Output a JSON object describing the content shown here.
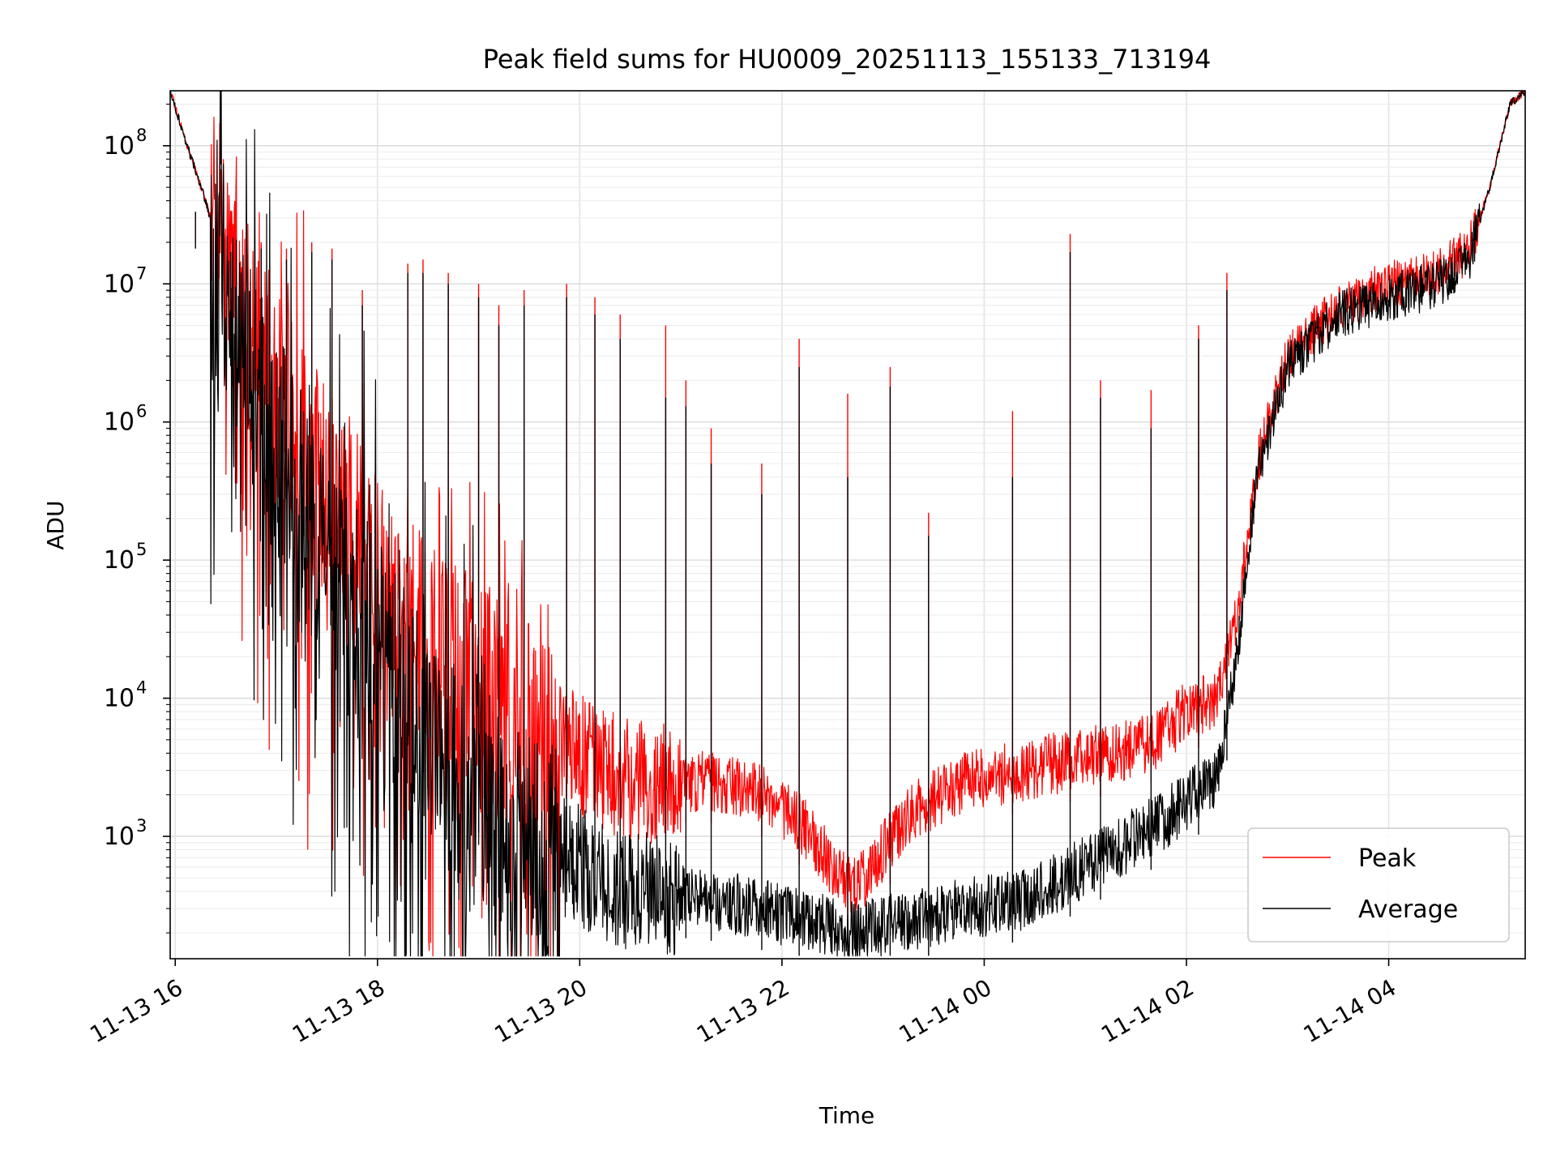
{
  "chart_data": {
    "type": "line",
    "title": "Peak field sums for HU0009_20251113_155133_713194",
    "xlabel": "Time",
    "ylabel": "ADU",
    "yscale": "log",
    "ylim": [
      130,
      250000000
    ],
    "xlim_hours": [
      15.95,
      29.35
    ],
    "grid": true,
    "legend_position": "lower-right",
    "x_ticks": [
      {
        "label": "11-13 16",
        "hour": 16
      },
      {
        "label": "11-13 18",
        "hour": 18
      },
      {
        "label": "11-13 20",
        "hour": 20
      },
      {
        "label": "11-13 22",
        "hour": 22
      },
      {
        "label": "11-14 00",
        "hour": 24
      },
      {
        "label": "11-14 02",
        "hour": 26
      },
      {
        "label": "11-14 04",
        "hour": 28
      }
    ],
    "y_ticks": [
      {
        "base": "10",
        "exp": "3",
        "value": 1000
      },
      {
        "base": "10",
        "exp": "4",
        "value": 10000
      },
      {
        "base": "10",
        "exp": "5",
        "value": 100000
      },
      {
        "base": "10",
        "exp": "6",
        "value": 1000000
      },
      {
        "base": "10",
        "exp": "7",
        "value": 10000000
      },
      {
        "base": "10",
        "exp": "8",
        "value": 100000000
      }
    ],
    "series": [
      {
        "name": "Peak",
        "color": "#ff0000",
        "envelope_hours": [
          15.95,
          16.1,
          16.3,
          16.5,
          16.8,
          17.5,
          18.5,
          19.5,
          20.5,
          21.3,
          21.8,
          22.2,
          22.7,
          23.3,
          23.8,
          24.4,
          24.8,
          25.3,
          25.7,
          26.0,
          26.3,
          26.5,
          26.7,
          27.0,
          27.5,
          28.0,
          28.5,
          28.8,
          29.0,
          29.2,
          29.35
        ],
        "envelope_values": [
          250000000,
          110000000,
          40000000,
          12000000,
          3000000,
          300000,
          25000,
          6000,
          2500,
          2500,
          2000,
          1200,
          400,
          1500,
          2500,
          3000,
          3500,
          4000,
          5000,
          8000,
          10000,
          40000,
          500000,
          3000000,
          7000000,
          10000000,
          12000000,
          18000000,
          50000000,
          200000000,
          250000000
        ],
        "spikes": [
          {
            "hour": 16.2,
            "value": 20000000
          },
          {
            "hour": 16.55,
            "value": 20000000
          },
          {
            "hour": 16.85,
            "value": 20000000
          },
          {
            "hour": 17.1,
            "value": 18000000
          },
          {
            "hour": 17.35,
            "value": 20000000
          },
          {
            "hour": 17.55,
            "value": 18000000
          },
          {
            "hour": 17.85,
            "value": 9000000
          },
          {
            "hour": 18.3,
            "value": 14000000
          },
          {
            "hour": 18.45,
            "value": 15000000
          },
          {
            "hour": 18.7,
            "value": 12000000
          },
          {
            "hour": 19.0,
            "value": 10000000
          },
          {
            "hour": 19.2,
            "value": 7000000
          },
          {
            "hour": 19.45,
            "value": 9000000
          },
          {
            "hour": 19.87,
            "value": 10000000
          },
          {
            "hour": 20.15,
            "value": 8000000
          },
          {
            "hour": 20.4,
            "value": 6000000
          },
          {
            "hour": 20.85,
            "value": 5000000
          },
          {
            "hour": 21.05,
            "value": 2000000
          },
          {
            "hour": 21.3,
            "value": 900000
          },
          {
            "hour": 21.8,
            "value": 500000
          },
          {
            "hour": 22.17,
            "value": 4000000
          },
          {
            "hour": 22.65,
            "value": 1600000
          },
          {
            "hour": 23.07,
            "value": 2500000
          },
          {
            "hour": 23.45,
            "value": 220000
          },
          {
            "hour": 24.28,
            "value": 1200000
          },
          {
            "hour": 24.85,
            "value": 23000000
          },
          {
            "hour": 25.15,
            "value": 2000000
          },
          {
            "hour": 25.65,
            "value": 1700000
          },
          {
            "hour": 26.12,
            "value": 5000000
          },
          {
            "hour": 26.4,
            "value": 12000000
          }
        ]
      },
      {
        "name": "Average",
        "color": "#000000",
        "envelope_hours": [
          15.95,
          16.1,
          16.3,
          16.5,
          16.8,
          17.5,
          18.5,
          19.5,
          20.5,
          21.3,
          21.8,
          22.2,
          22.7,
          23.3,
          23.8,
          24.4,
          24.8,
          25.3,
          25.7,
          26.0,
          26.3,
          26.5,
          26.7,
          27.0,
          27.5,
          28.0,
          28.5,
          28.8,
          29.0,
          29.2,
          29.35
        ],
        "envelope_values": [
          250000000,
          110000000,
          40000000,
          10000000,
          2000000,
          100000,
          5000,
          900,
          400,
          350,
          300,
          250,
          200,
          250,
          300,
          350,
          500,
          800,
          1200,
          1800,
          2500,
          20000,
          400000,
          2500000,
          6000000,
          8000000,
          10000000,
          16000000,
          50000000,
          200000000,
          250000000
        ],
        "spikes": [
          {
            "hour": 16.2,
            "value": 18000000
          },
          {
            "hour": 16.55,
            "value": 17000000
          },
          {
            "hour": 16.85,
            "value": 18000000
          },
          {
            "hour": 17.1,
            "value": 15000000
          },
          {
            "hour": 17.35,
            "value": 17000000
          },
          {
            "hour": 17.55,
            "value": 15000000
          },
          {
            "hour": 17.85,
            "value": 7000000
          },
          {
            "hour": 18.3,
            "value": 12000000
          },
          {
            "hour": 18.45,
            "value": 12000000
          },
          {
            "hour": 18.7,
            "value": 10000000
          },
          {
            "hour": 19.0,
            "value": 8000000
          },
          {
            "hour": 19.2,
            "value": 5000000
          },
          {
            "hour": 19.45,
            "value": 7000000
          },
          {
            "hour": 19.87,
            "value": 8000000
          },
          {
            "hour": 20.15,
            "value": 6000000
          },
          {
            "hour": 20.4,
            "value": 4000000
          },
          {
            "hour": 20.85,
            "value": 1500000
          },
          {
            "hour": 21.05,
            "value": 1300000
          },
          {
            "hour": 21.3,
            "value": 500000
          },
          {
            "hour": 21.8,
            "value": 300000
          },
          {
            "hour": 22.17,
            "value": 2500000
          },
          {
            "hour": 22.65,
            "value": 400000
          },
          {
            "hour": 23.07,
            "value": 1800000
          },
          {
            "hour": 23.45,
            "value": 150000
          },
          {
            "hour": 24.28,
            "value": 400000
          },
          {
            "hour": 24.85,
            "value": 17000000
          },
          {
            "hour": 25.15,
            "value": 1500000
          },
          {
            "hour": 25.65,
            "value": 900000
          },
          {
            "hour": 26.12,
            "value": 4000000
          },
          {
            "hour": 26.4,
            "value": 9000000
          }
        ]
      }
    ]
  }
}
